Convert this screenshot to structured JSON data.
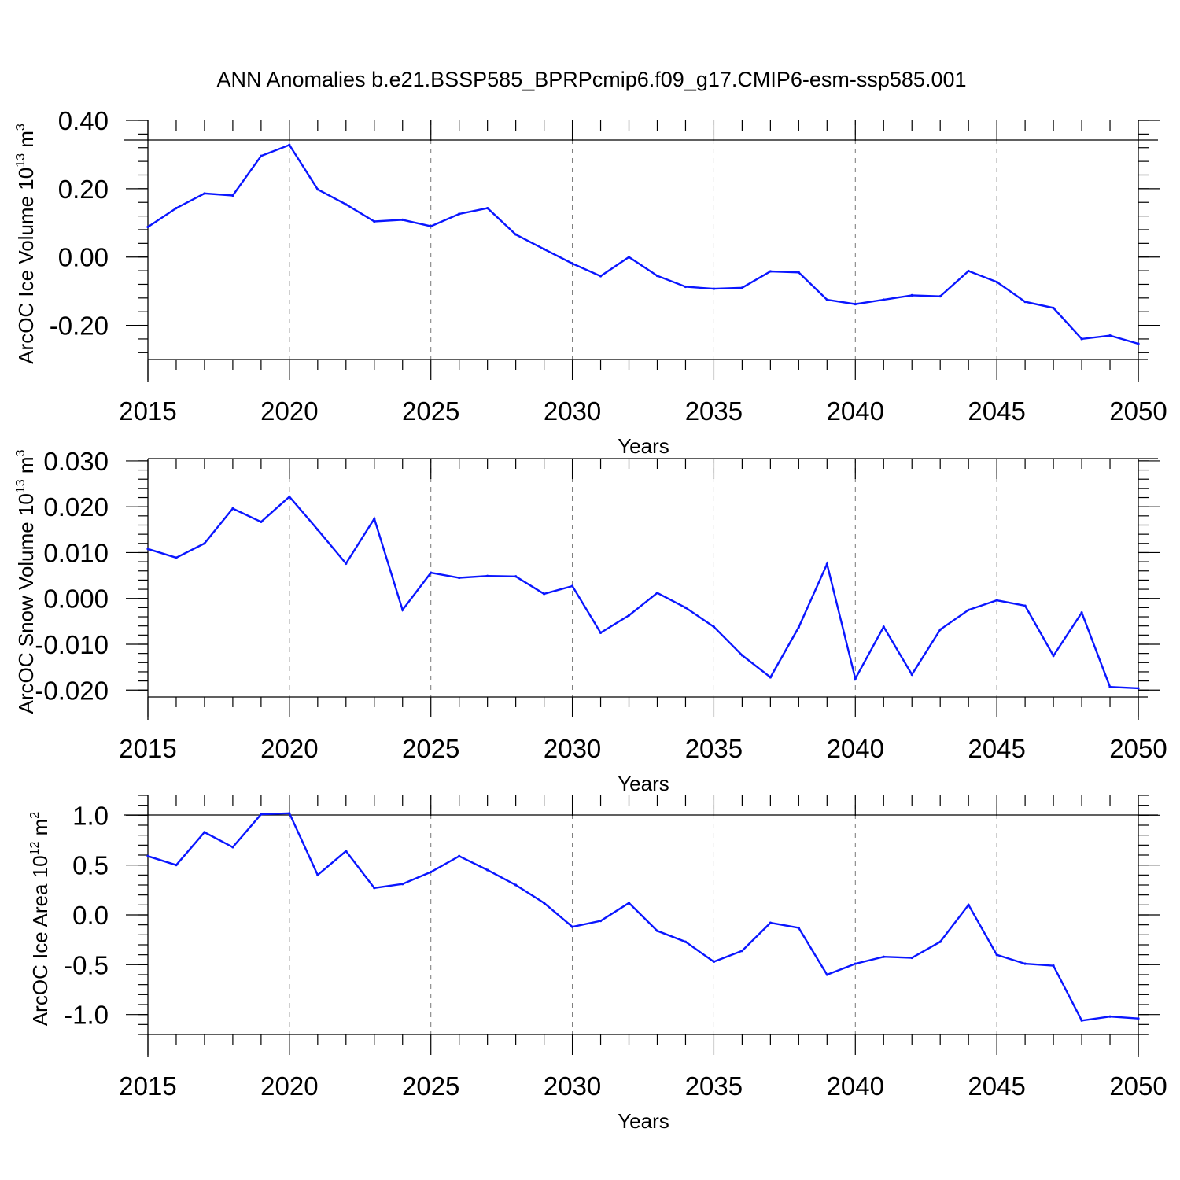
{
  "title": "ANN Anomalies b.e21.BSSP585_BPRPcmip6.f09_g17.CMIP6-esm-ssp585.001",
  "chart_data": [
    {
      "type": "line",
      "ylabel": "ArcOC Ice Volume 10",
      "ylabel_exp": "13",
      "ylabel_unit": " m",
      "ylabel_unit_exp": "3",
      "xlabel": "Years",
      "xlim": [
        2015,
        2050
      ],
      "ylim": [
        -0.3,
        0.4
      ],
      "yticks": [
        0.4,
        0.2,
        0.0,
        -0.2
      ],
      "ytick_labels": [
        "0.40",
        "0.20",
        "0.00",
        "-0.20"
      ],
      "yminor_step": 0.04,
      "xticks": [
        2015,
        2020,
        2025,
        2030,
        2035,
        2040,
        2045,
        2050
      ],
      "xtick_labels": [
        "2015",
        "2020",
        "2025",
        "2030",
        "2035",
        "2040",
        "2045",
        "2050"
      ],
      "series": [
        {
          "name": "ArcOC Ice Volume",
          "color": "#0a16ff",
          "x": [
            2015,
            2016,
            2017,
            2018,
            2019,
            2020,
            2021,
            2022,
            2023,
            2024,
            2025,
            2026,
            2027,
            2028,
            2029,
            2030,
            2031,
            2032,
            2033,
            2034,
            2035,
            2036,
            2037,
            2038,
            2039,
            2040,
            2041,
            2042,
            2043,
            2044,
            2045,
            2046,
            2047,
            2048,
            2049,
            2050
          ],
          "values": [
            0.088,
            0.143,
            0.186,
            0.18,
            0.296,
            0.328,
            0.198,
            0.154,
            0.104,
            0.109,
            0.09,
            0.126,
            0.143,
            0.066,
            0.023,
            -0.019,
            -0.056,
            0.0,
            -0.055,
            -0.087,
            -0.093,
            -0.09,
            -0.042,
            -0.045,
            -0.125,
            -0.138,
            -0.125,
            -0.112,
            -0.115,
            -0.041,
            -0.073,
            -0.131,
            -0.149,
            -0.24,
            -0.23,
            -0.254
          ]
        }
      ]
    },
    {
      "type": "line",
      "ylabel": "ArcOC Snow Volume 10",
      "ylabel_exp": "13",
      "ylabel_unit": " m",
      "ylabel_unit_exp": "3",
      "xlabel": "Years",
      "xlim": [
        2015,
        2050
      ],
      "ylim": [
        -0.0215,
        0.0305
      ],
      "yticks": [
        0.03,
        0.02,
        0.01,
        0.0,
        -0.01,
        -0.02
      ],
      "ytick_labels": [
        "0.030",
        "0.020",
        "0.010",
        "0.000",
        "-0.010",
        "-0.020"
      ],
      "yminor_step": 0.002,
      "xticks": [
        2015,
        2020,
        2025,
        2030,
        2035,
        2040,
        2045,
        2050
      ],
      "xtick_labels": [
        "2015",
        "2020",
        "2025",
        "2030",
        "2035",
        "2040",
        "2045",
        "2050"
      ],
      "series": [
        {
          "name": "ArcOC Snow Volume",
          "color": "#0a16ff",
          "x": [
            2015,
            2016,
            2017,
            2018,
            2019,
            2020,
            2021,
            2022,
            2023,
            2024,
            2025,
            2026,
            2027,
            2028,
            2029,
            2030,
            2031,
            2032,
            2033,
            2034,
            2035,
            2036,
            2037,
            2038,
            2039,
            2040,
            2041,
            2042,
            2043,
            2044,
            2045,
            2046,
            2047,
            2048,
            2049,
            2050
          ],
          "values": [
            0.0108,
            0.0089,
            0.012,
            0.0196,
            0.0167,
            0.0222,
            0.015,
            0.0076,
            0.0174,
            -0.0025,
            0.0056,
            0.0045,
            0.0049,
            0.0048,
            0.001,
            0.0027,
            -0.0075,
            -0.0037,
            0.0012,
            -0.002,
            -0.0062,
            -0.0124,
            -0.0172,
            -0.0063,
            0.0075,
            -0.0175,
            -0.0062,
            -0.0166,
            -0.0068,
            -0.0025,
            -0.0004,
            -0.0016,
            -0.0125,
            -0.0031,
            -0.0193,
            -0.0196
          ]
        }
      ]
    },
    {
      "type": "line",
      "ylabel": "ArcOC Ice Area 10",
      "ylabel_exp": "12",
      "ylabel_unit": " m",
      "ylabel_unit_exp": "2",
      "xlabel": "Years",
      "xlim": [
        2015,
        2050
      ],
      "ylim": [
        -1.2,
        1.2
      ],
      "yticks": [
        1.0,
        0.5,
        0.0,
        -0.5,
        -1.0
      ],
      "ytick_labels": [
        "1.0",
        "0.5",
        "0.0",
        "-0.5",
        "-1.0"
      ],
      "yminor_step": 0.1,
      "xticks": [
        2015,
        2020,
        2025,
        2030,
        2035,
        2040,
        2045,
        2050
      ],
      "xtick_labels": [
        "2015",
        "2020",
        "2025",
        "2030",
        "2035",
        "2040",
        "2045",
        "2050"
      ],
      "series": [
        {
          "name": "ArcOC Ice Area",
          "color": "#0a16ff",
          "x": [
            2015,
            2016,
            2017,
            2018,
            2019,
            2020,
            2021,
            2022,
            2023,
            2024,
            2025,
            2026,
            2027,
            2028,
            2029,
            2030,
            2031,
            2032,
            2033,
            2034,
            2035,
            2036,
            2037,
            2038,
            2039,
            2040,
            2041,
            2042,
            2043,
            2044,
            2045,
            2046,
            2047,
            2048,
            2049,
            2050
          ],
          "values": [
            0.59,
            0.5,
            0.83,
            0.68,
            1.01,
            1.02,
            0.4,
            0.64,
            0.27,
            0.31,
            0.43,
            0.59,
            0.45,
            0.3,
            0.12,
            -0.12,
            -0.06,
            0.12,
            -0.16,
            -0.27,
            -0.47,
            -0.36,
            -0.08,
            -0.13,
            -0.6,
            -0.49,
            -0.42,
            -0.43,
            -0.27,
            0.1,
            -0.4,
            -0.49,
            -0.51,
            -1.06,
            -1.02,
            -1.04
          ]
        }
      ]
    }
  ]
}
